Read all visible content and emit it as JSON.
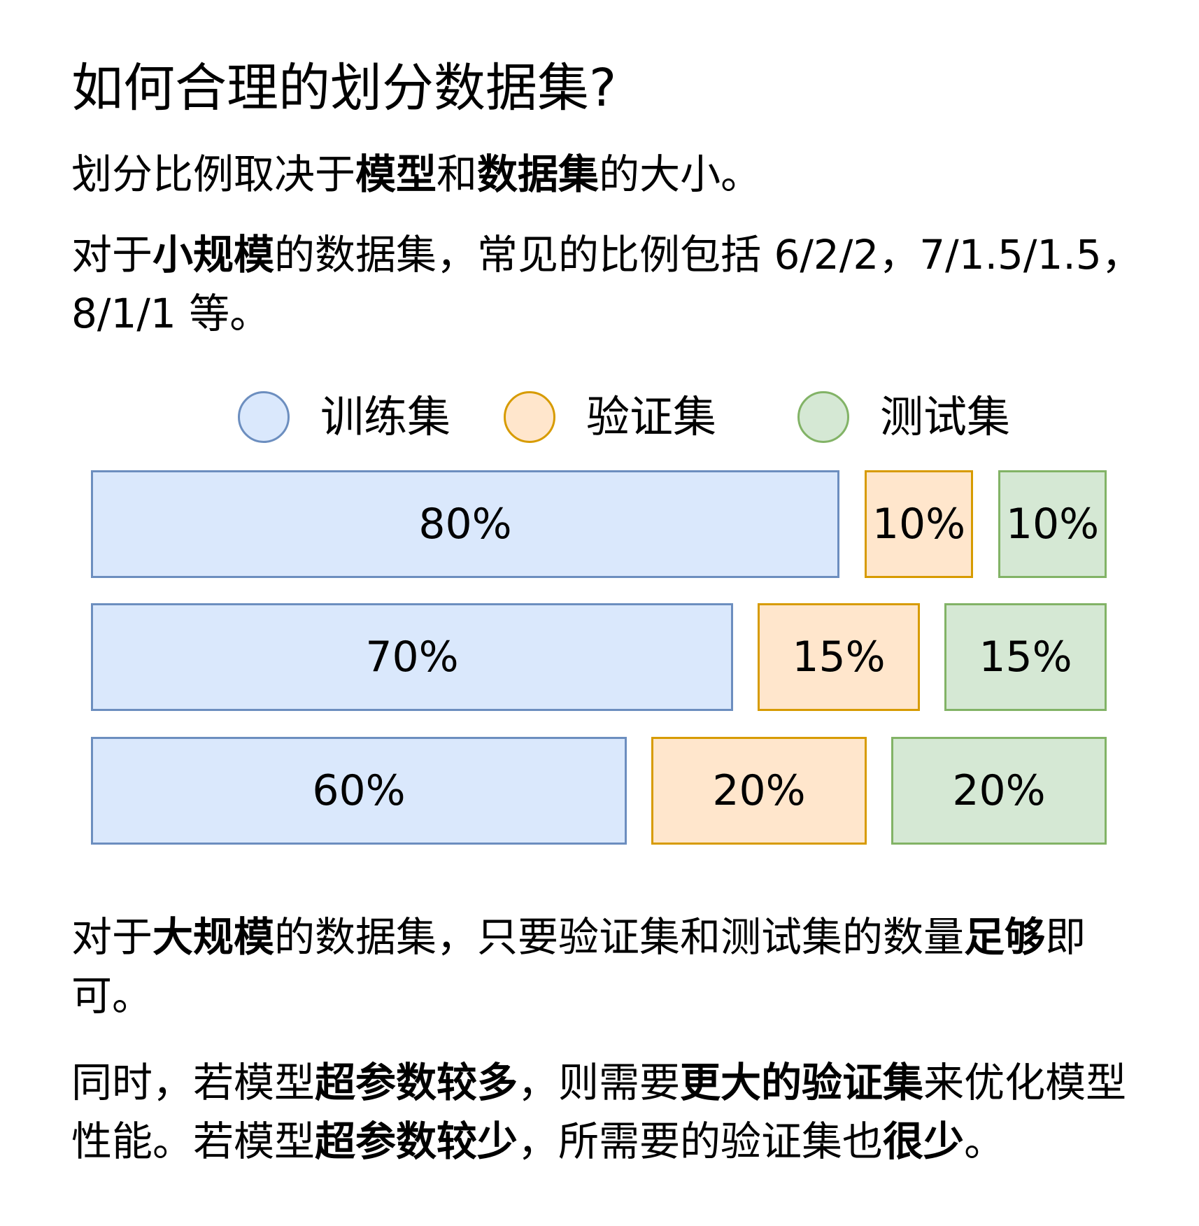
{
  "title": "如何合理的划分数据集?",
  "para1": [
    {
      "t": "划分比例取决于",
      "b": false
    },
    {
      "t": "模型",
      "b": true
    },
    {
      "t": "和",
      "b": false
    },
    {
      "t": "数据集",
      "b": true
    },
    {
      "t": "的大小。",
      "b": false
    }
  ],
  "para2": [
    {
      "t": "对于",
      "b": false
    },
    {
      "t": "小规模",
      "b": true
    },
    {
      "t": "的数据集，常见的比例包括 6/2/2，7/1.5/1.5，8/1/1 等。",
      "b": false
    }
  ],
  "legend": {
    "train": {
      "label": "训练集",
      "color": "#dae8fc",
      "border": "#6c8ebf"
    },
    "val": {
      "label": "验证集",
      "color": "#ffe6cc",
      "border": "#d79b00"
    },
    "test": {
      "label": "测试集",
      "color": "#d5e8d4",
      "border": "#82b366"
    }
  },
  "rows": [
    {
      "train": "80%",
      "val": "10%",
      "test": "10%"
    },
    {
      "train": "70%",
      "val": "15%",
      "test": "15%"
    },
    {
      "train": "60%",
      "val": "20%",
      "test": "20%"
    }
  ],
  "para3": [
    {
      "t": "对于",
      "b": false
    },
    {
      "t": "大规模",
      "b": true
    },
    {
      "t": "的数据集，只要验证集和测试集的数量",
      "b": false
    },
    {
      "t": "足够",
      "b": true
    },
    {
      "t": "即可。",
      "b": false
    }
  ],
  "para4": [
    {
      "t": "同时，若模型",
      "b": false
    },
    {
      "t": "超参数较多",
      "b": true
    },
    {
      "t": "，则需要",
      "b": false
    },
    {
      "t": "更大的验证集",
      "b": true
    },
    {
      "t": "来优化模型性能。若模型",
      "b": false
    },
    {
      "t": "超参数较少",
      "b": true
    },
    {
      "t": "，所需要的验证集也",
      "b": false
    },
    {
      "t": "很少",
      "b": true
    },
    {
      "t": "。",
      "b": false
    }
  ]
}
